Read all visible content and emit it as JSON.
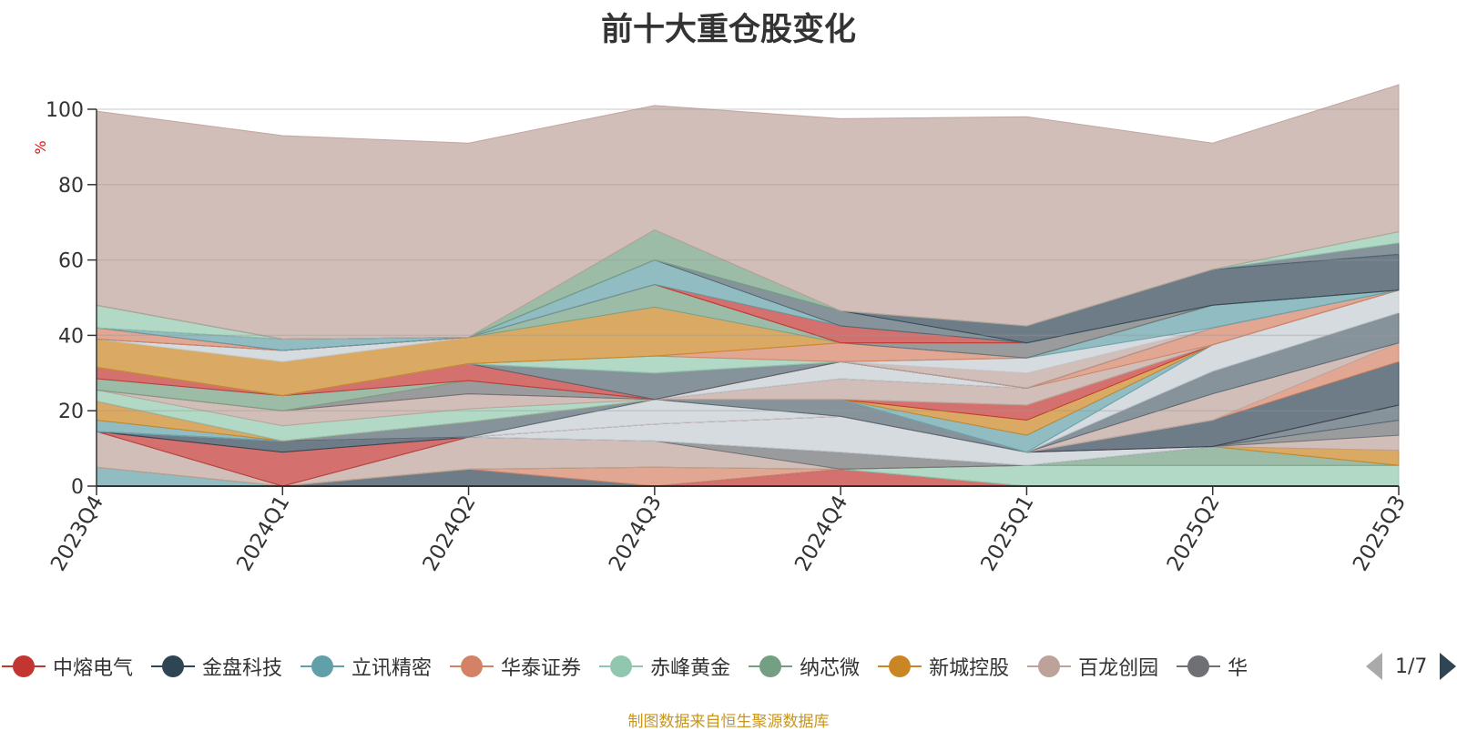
{
  "title": "前十大重仓股变化",
  "footer": "制图数据来自恒生聚源数据库",
  "legend_pager": "1/7",
  "chart_data": {
    "type": "area",
    "stacked": true,
    "ylabel": "%",
    "ylim": [
      0,
      100
    ],
    "yticks": [
      0,
      20,
      40,
      60,
      80,
      100
    ],
    "categories": [
      "2023Q4",
      "2024Q1",
      "2024Q2",
      "2024Q3",
      "2024Q4",
      "2025Q1",
      "2025Q2",
      "2025Q3"
    ],
    "series": [
      {
        "name": "中熔电气",
        "color": "#c23531",
        "values": [
          0,
          0,
          0,
          0,
          4.5,
          0,
          0,
          0
        ]
      },
      {
        "name": "金盘科技",
        "color": "#2f4554",
        "values": [
          0,
          0,
          4.5,
          0,
          0,
          0,
          0,
          0
        ]
      },
      {
        "name": "立讯精密",
        "color": "#61a0a8",
        "values": [
          5,
          0,
          0,
          0,
          0,
          0,
          0,
          0
        ]
      },
      {
        "name": "华泰证券",
        "color": "#d48265",
        "values": [
          0,
          0,
          0,
          5,
          0,
          0,
          0,
          0
        ]
      },
      {
        "name": "赤峰黄金",
        "color": "#91c7ae",
        "values": [
          0,
          0,
          0,
          0,
          0,
          5.5,
          5.5,
          5.5
        ]
      },
      {
        "name": "纳芯微",
        "color": "#749f83",
        "values": [
          0,
          0,
          0,
          0,
          0,
          0,
          5,
          0
        ]
      },
      {
        "name": "新城控股",
        "color": "#ca8622",
        "values": [
          0,
          0,
          0,
          0,
          0,
          0,
          0,
          4
        ]
      },
      {
        "name": "百龙创园",
        "color": "#bda29a",
        "values": [
          9.5,
          0,
          8.5,
          7,
          0,
          0,
          0,
          4
        ]
      },
      {
        "name": "华",
        "color": "#6e7074",
        "values": [
          0,
          0,
          0,
          0,
          4.5,
          0,
          0,
          4
        ]
      },
      {
        "name": "",
        "color": "#546570",
        "values": [
          0,
          0,
          0,
          0,
          0,
          0,
          0,
          4
        ]
      },
      {
        "name": "",
        "color": "#c4ccd3",
        "values": [
          0,
          0,
          0,
          4.5,
          9.5,
          3.5,
          0,
          0
        ]
      },
      {
        "name": "",
        "color": "#c23531",
        "values": [
          0,
          9,
          0,
          0,
          0,
          0,
          0,
          0
        ]
      },
      {
        "name": "",
        "color": "#2f4554",
        "values": [
          0,
          3,
          0,
          0,
          0,
          0,
          7,
          11.5
        ]
      },
      {
        "name": "",
        "color": "#d48265",
        "values": [
          0,
          0,
          0,
          0,
          0,
          0,
          0,
          5
        ]
      },
      {
        "name": "",
        "color": "#c4ccd3",
        "values": [
          0,
          0,
          0,
          6.5,
          0,
          0,
          0,
          0
        ]
      },
      {
        "name": "",
        "color": "#bda29a",
        "values": [
          0,
          0,
          0,
          0,
          0,
          0,
          7,
          0
        ]
      },
      {
        "name": "",
        "color": "#546570",
        "values": [
          0,
          0,
          4,
          0,
          4.5,
          0,
          6,
          8
        ]
      },
      {
        "name": "",
        "color": "#c4ccd3",
        "values": [
          0,
          0,
          0,
          0,
          0,
          0,
          7,
          6
        ]
      },
      {
        "name": "",
        "color": "#61a0a8",
        "values": [
          3,
          0,
          0,
          0,
          0,
          4.5,
          0,
          0
        ]
      },
      {
        "name": "",
        "color": "#ca8622",
        "values": [
          5,
          0,
          0,
          0,
          0,
          4,
          0,
          0
        ]
      },
      {
        "name": "",
        "color": "#c23531",
        "values": [
          0,
          0,
          0,
          0,
          0,
          4,
          0,
          0
        ]
      },
      {
        "name": "",
        "color": "#91c7ae",
        "values": [
          3,
          4,
          3.5,
          0,
          0,
          0,
          0,
          0
        ]
      },
      {
        "name": "",
        "color": "#bda29a",
        "values": [
          0,
          4,
          4,
          0,
          5.5,
          4.5,
          0,
          0
        ]
      },
      {
        "name": "",
        "color": "#d48265",
        "values": [
          0,
          0,
          0,
          0,
          0,
          0,
          4.5,
          0
        ]
      },
      {
        "name": "",
        "color": "#6e7074",
        "values": [
          0,
          0,
          3.5,
          0,
          0,
          0,
          0,
          0
        ]
      },
      {
        "name": "",
        "color": "#c4ccd3",
        "values": [
          0,
          0,
          0,
          0,
          4.5,
          0,
          0,
          0
        ]
      },
      {
        "name": "",
        "color": "#d48265",
        "values": [
          0,
          0,
          0,
          0,
          0,
          0,
          0,
          0
        ]
      },
      {
        "name": "",
        "color": "#749f83",
        "values": [
          3,
          4,
          0,
          0,
          0,
          0,
          0,
          0
        ]
      },
      {
        "name": "",
        "color": "#c23531",
        "values": [
          3,
          0,
          4.5,
          0,
          0,
          0,
          0,
          0
        ]
      },
      {
        "name": "",
        "color": "#546570",
        "values": [
          0,
          0,
          0,
          7,
          0,
          0,
          0,
          0
        ]
      },
      {
        "name": "",
        "color": "#bda29a",
        "values": [
          0,
          0,
          0,
          0,
          0,
          4,
          0,
          0
        ]
      },
      {
        "name": "",
        "color": "#c4ccd3",
        "values": [
          0,
          0,
          0,
          0,
          0,
          4,
          0,
          0
        ]
      },
      {
        "name": "",
        "color": "#61a0a8",
        "values": [
          0,
          0,
          0,
          0,
          0,
          0,
          6,
          0
        ]
      },
      {
        "name": "",
        "color": "#91c7ae",
        "values": [
          0,
          0,
          0,
          4.5,
          0,
          0,
          0,
          0
        ]
      },
      {
        "name": "",
        "color": "#d48265",
        "values": [
          0,
          0,
          0,
          0,
          5,
          0,
          0,
          0
        ]
      },
      {
        "name": "",
        "color": "#ca8622",
        "values": [
          7.5,
          9,
          7,
          13,
          0,
          0,
          0,
          0
        ]
      },
      {
        "name": "",
        "color": "#c4ccd3",
        "values": [
          0,
          3,
          0,
          0,
          0,
          0,
          0,
          0
        ]
      },
      {
        "name": "",
        "color": "#749f83",
        "values": [
          0,
          0,
          0,
          6,
          0,
          0,
          0,
          0
        ]
      },
      {
        "name": "",
        "color": "#6e7074",
        "values": [
          0,
          0,
          0,
          0,
          0,
          4,
          0,
          0
        ]
      },
      {
        "name": "",
        "color": "#d48265",
        "values": [
          3,
          0,
          0,
          0,
          0,
          0,
          0,
          0
        ]
      },
      {
        "name": "",
        "color": "#c23531",
        "values": [
          0,
          0,
          0,
          0,
          4.5,
          0,
          0,
          0
        ]
      },
      {
        "name": "",
        "color": "#61a0a8",
        "values": [
          0,
          3,
          0,
          6.5,
          0,
          0,
          0,
          0
        ]
      },
      {
        "name": "",
        "color": "#546570",
        "values": [
          0,
          0,
          0,
          0,
          4,
          0,
          0,
          0
        ]
      },
      {
        "name": "",
        "color": "#91c7ae",
        "values": [
          6,
          0,
          0,
          0,
          0,
          0,
          0,
          0
        ]
      },
      {
        "name": "",
        "color": "#2f4554",
        "values": [
          0,
          0,
          0,
          0,
          0,
          4.5,
          9.5,
          9.5
        ]
      },
      {
        "name": "",
        "color": "#546570",
        "values": [
          0,
          0,
          0,
          0,
          0,
          0,
          0,
          3
        ]
      },
      {
        "name": "",
        "color": "#91c7ae",
        "values": [
          0,
          0,
          0,
          0,
          0,
          0,
          0,
          3
        ]
      },
      {
        "name": "",
        "color": "#749f83",
        "values": [
          0,
          0,
          0,
          8,
          0,
          0,
          0,
          0
        ]
      },
      {
        "name": "",
        "color": "#bda29a",
        "values": [
          51.5,
          54,
          51.5,
          33,
          51,
          55.5,
          33.5,
          39
        ]
      }
    ]
  },
  "legend": [
    {
      "name": "中熔电气",
      "color": "#c23531"
    },
    {
      "name": "金盘科技",
      "color": "#2f4554"
    },
    {
      "name": "立讯精密",
      "color": "#61a0a8"
    },
    {
      "name": "华泰证券",
      "color": "#d48265"
    },
    {
      "name": "赤峰黄金",
      "color": "#91c7ae"
    },
    {
      "name": "纳芯微",
      "color": "#749f83"
    },
    {
      "name": "新城控股",
      "color": "#ca8622"
    },
    {
      "name": "百龙创园",
      "color": "#bda29a"
    },
    {
      "name": "华",
      "color": "#6e7074"
    }
  ]
}
